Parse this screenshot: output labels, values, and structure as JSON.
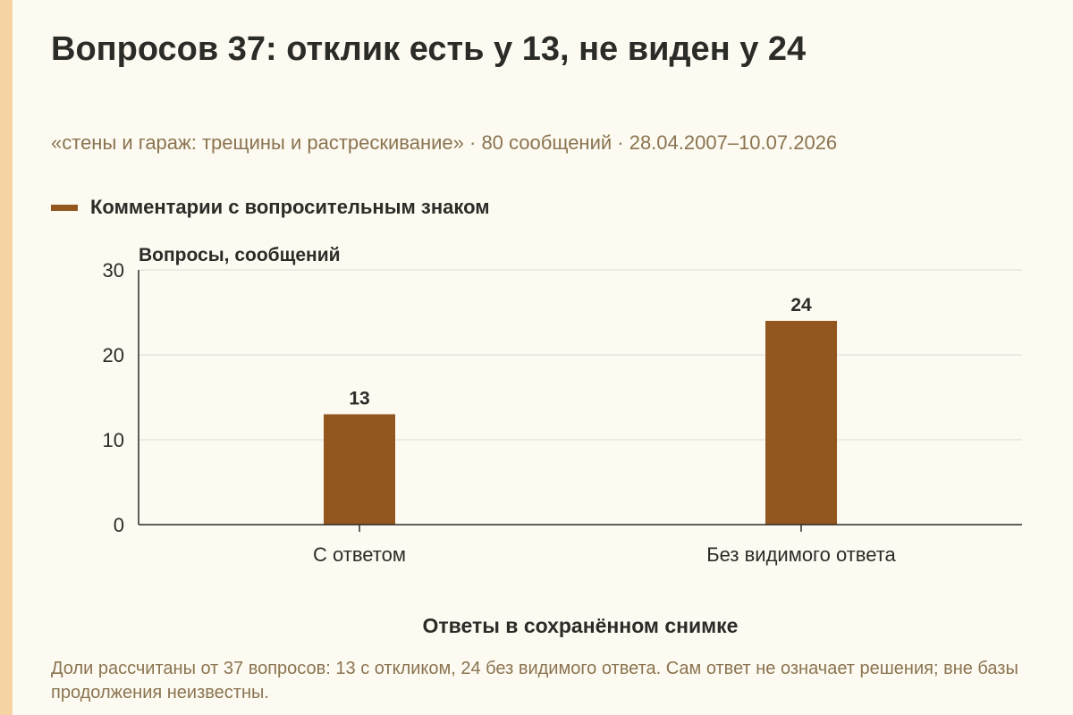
{
  "title": "Вопросов 37: отклик есть у 13, не виден у 24",
  "subtitle": "«стены и гараж: трещины и растрескивание» · 80 сообщений · 28.04.2007–10.07.2026",
  "footnote": "Доли рассчитаны от 37 вопросов: 13 с откликом, 24 без видимого ответа. Сам ответ не означает решения; вне базы продолжения неизвестны.",
  "colors": {
    "bar": "#93561f",
    "background": "#fdfaf1",
    "accent_stripe": "#f5d3a3",
    "grid": "#dcdad2",
    "axis": "#2b2b28"
  },
  "chart_data": {
    "type": "bar",
    "categories": [
      "С ответом",
      "Без видимого ответа"
    ],
    "series": [
      {
        "name": "Комментарии с вопросительным знаком",
        "values": [
          13,
          24
        ]
      }
    ],
    "xlabel": "Ответы в сохранённом снимке",
    "ylabel": "Вопросы, сообщений",
    "ylim": [
      0,
      30
    ],
    "yticks": [
      0,
      10,
      20,
      30
    ],
    "data_labels": true,
    "grid": true,
    "legend": "top-left"
  }
}
